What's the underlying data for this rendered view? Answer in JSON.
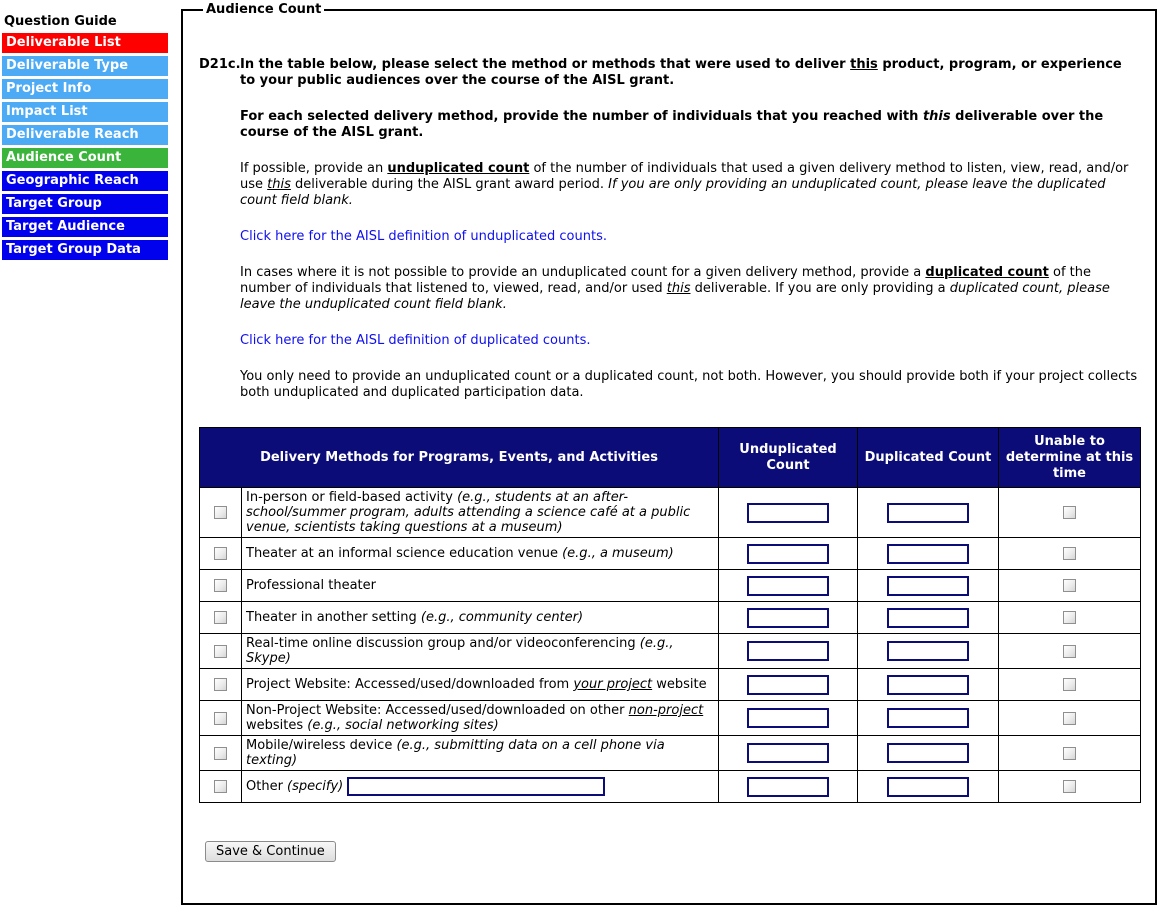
{
  "page": {
    "legend": "Audience Count"
  },
  "colors": {
    "nav_red": "#ff0000",
    "nav_lightblue": "#4daaf5",
    "nav_green": "#3bb43b",
    "nav_blue": "#0101ee",
    "table_header_navy": "#0c0c78",
    "link_blue": "#0f0fee"
  },
  "sidebar": {
    "heading": "Question Guide",
    "items": [
      {
        "label": "Deliverable List",
        "color": "#ff0000"
      },
      {
        "label": "Deliverable Type",
        "color": "#4daaf5"
      },
      {
        "label": "Project Info",
        "color": "#4daaf5"
      },
      {
        "label": "Impact List",
        "color": "#4daaf5"
      },
      {
        "label": "Deliverable Reach",
        "color": "#4daaf5"
      },
      {
        "label": "Audience Count",
        "color": "#3bb43b"
      },
      {
        "label": "Geographic Reach",
        "color": "#0101ee"
      },
      {
        "label": "Target Group",
        "color": "#0101ee"
      },
      {
        "label": "Target Audience",
        "color": "#0101ee"
      },
      {
        "label": "Target Group Data",
        "color": "#0101ee"
      }
    ]
  },
  "question": {
    "number": "D21c.",
    "blocks": [
      {
        "type": "text",
        "weight": "bold",
        "segments": [
          {
            "t": "In the table below, please select the method or methods that were used to deliver "
          },
          {
            "t": "this",
            "u": true
          },
          {
            "t": " product, program, or experience to your public audiences over the course of the AISL grant."
          }
        ]
      },
      {
        "type": "text",
        "weight": "bold",
        "segments": [
          {
            "t": "For each selected delivery method, provide the number of individuals that you reached with "
          },
          {
            "t": "this",
            "i": true
          },
          {
            "t": " deliverable over the course of the AISL grant."
          }
        ]
      },
      {
        "type": "text",
        "weight": "normal",
        "segments": [
          {
            "t": "If possible, provide an "
          },
          {
            "t": "unduplicated count",
            "b": true,
            "u": true
          },
          {
            "t": " of the number of individuals that used a given delivery method to listen, view, read, and/or use "
          },
          {
            "t": "this",
            "i": true,
            "u": true
          },
          {
            "t": " deliverable during the AISL grant award period. "
          },
          {
            "t": "If you are only providing an unduplicated count, please leave the duplicated count field blank.",
            "i": true
          }
        ]
      },
      {
        "type": "link",
        "weight": "normal",
        "segments": [
          {
            "t": "Click here for the AISL definition of unduplicated counts."
          }
        ]
      },
      {
        "type": "text",
        "weight": "normal",
        "segments": [
          {
            "t": "In cases where it is not possible to provide an unduplicated count for a given delivery method, provide a "
          },
          {
            "t": "duplicated count",
            "b": true,
            "u": true
          },
          {
            "t": " of the number of individuals that listened to, viewed, read, and/or used "
          },
          {
            "t": "this",
            "i": true,
            "u": true
          },
          {
            "t": " deliverable. If you are only providing a "
          },
          {
            "t": "duplicated count, please leave the unduplicated count field blank.",
            "i": true
          }
        ]
      },
      {
        "type": "link",
        "weight": "normal",
        "segments": [
          {
            "t": "Click here for the AISL definition of duplicated counts."
          }
        ]
      },
      {
        "type": "text",
        "weight": "normal",
        "segments": [
          {
            "t": "You only need to provide an unduplicated count or a duplicated count, not both. However, you should provide both if your project collects both unduplicated and duplicated participation data."
          }
        ]
      }
    ]
  },
  "table": {
    "headers": [
      "Delivery Methods for Programs, Events, and Activities",
      "Unduplicated Count",
      "Duplicated Count",
      "Unable to determine at this time"
    ],
    "rows": [
      {
        "checked": false,
        "unable_checked": false,
        "unduplicated_value": "",
        "duplicated_value": "",
        "segments": [
          {
            "t": "In-person or field-based activity "
          },
          {
            "t": "(e.g., students at an after-school/summer program, adults attending a science café at a public venue, scientists taking questions at a museum)",
            "i": true
          }
        ]
      },
      {
        "checked": false,
        "unable_checked": false,
        "unduplicated_value": "",
        "duplicated_value": "",
        "segments": [
          {
            "t": "Theater at an informal science education venue "
          },
          {
            "t": "(e.g., a museum)",
            "i": true
          }
        ]
      },
      {
        "checked": false,
        "unable_checked": false,
        "unduplicated_value": "",
        "duplicated_value": "",
        "segments": [
          {
            "t": "Professional theater"
          }
        ]
      },
      {
        "checked": false,
        "unable_checked": false,
        "unduplicated_value": "",
        "duplicated_value": "",
        "segments": [
          {
            "t": "Theater in another setting "
          },
          {
            "t": "(e.g., community center)",
            "i": true
          }
        ]
      },
      {
        "checked": false,
        "unable_checked": false,
        "unduplicated_value": "",
        "duplicated_value": "",
        "segments": [
          {
            "t": "Real-time online discussion group and/or videoconferencing "
          },
          {
            "t": "(e.g., Skype)",
            "i": true
          }
        ]
      },
      {
        "checked": false,
        "unable_checked": false,
        "unduplicated_value": "",
        "duplicated_value": "",
        "segments": [
          {
            "t": "Project Website: Accessed/used/downloaded from "
          },
          {
            "t": "your project",
            "i": true,
            "u": true
          },
          {
            "t": " website"
          }
        ]
      },
      {
        "checked": false,
        "unable_checked": false,
        "unduplicated_value": "",
        "duplicated_value": "",
        "segments": [
          {
            "t": "Non-Project Website: Accessed/used/downloaded on other "
          },
          {
            "t": "non-project",
            "i": true,
            "u": true
          },
          {
            "t": " websites "
          },
          {
            "t": "(e.g., social networking sites)",
            "i": true
          }
        ]
      },
      {
        "checked": false,
        "unable_checked": false,
        "unduplicated_value": "",
        "duplicated_value": "",
        "segments": [
          {
            "t": "Mobile/wireless device "
          },
          {
            "t": "(e.g., submitting data on a cell phone via texting)",
            "i": true
          }
        ]
      },
      {
        "checked": false,
        "unable_checked": false,
        "other": true,
        "other_value": "",
        "unduplicated_value": "",
        "duplicated_value": "",
        "segments": [
          {
            "t": "Other "
          },
          {
            "t": "(specify)",
            "i": true
          }
        ]
      }
    ]
  },
  "footer": {
    "save_button_label": "Save & Continue"
  }
}
